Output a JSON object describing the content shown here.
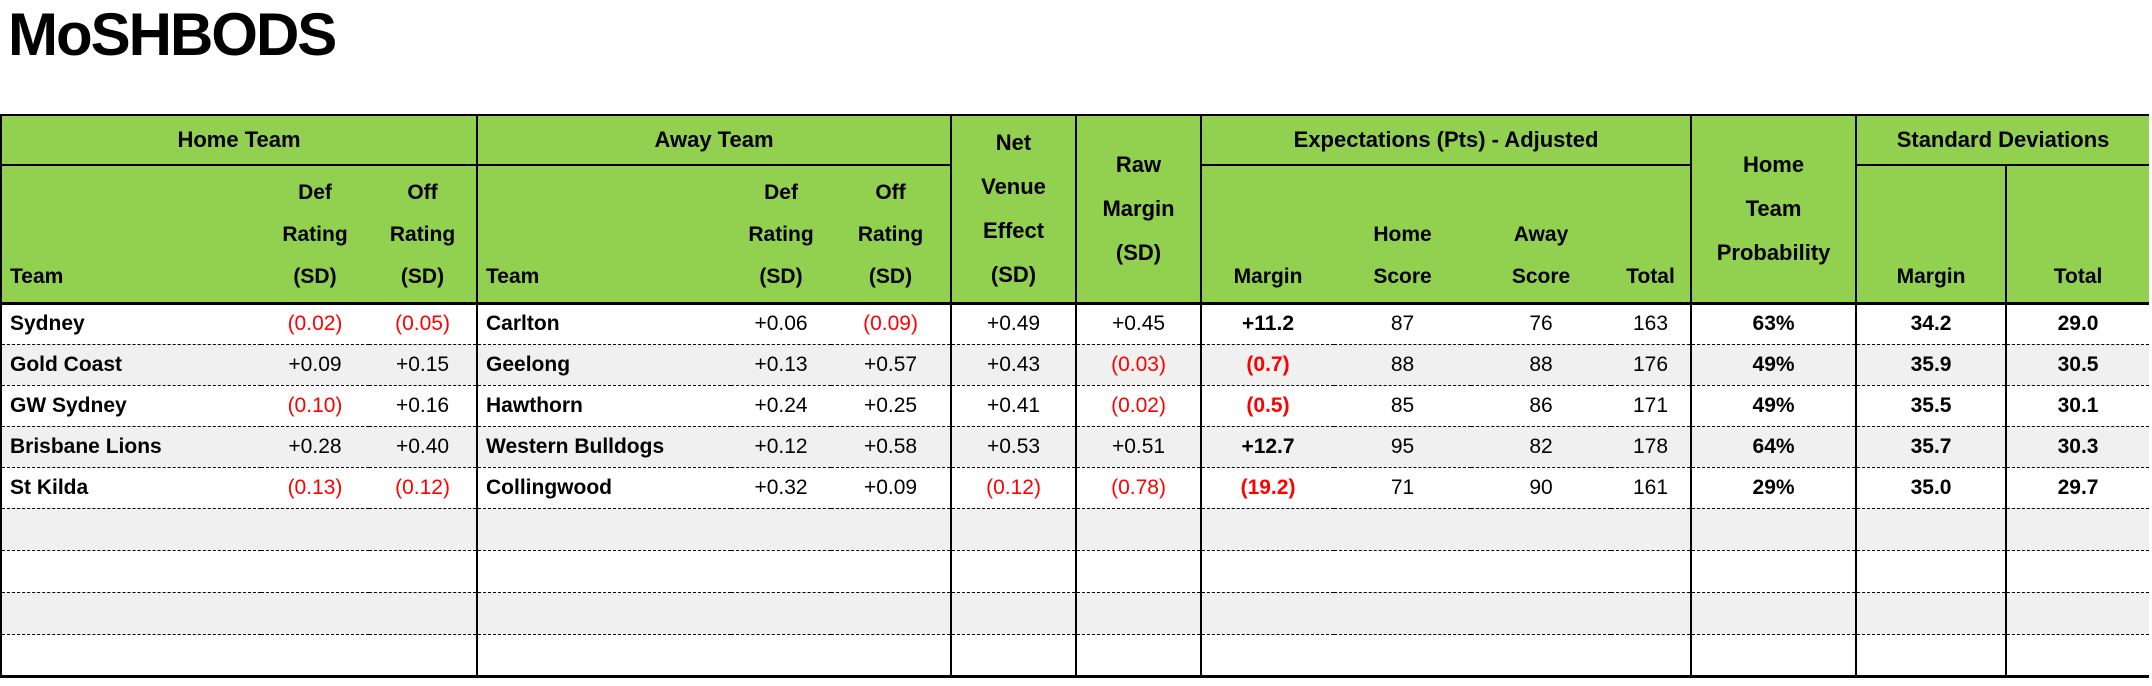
{
  "title": "MoSHBODS",
  "colors": {
    "header_green": "#92d050",
    "negative_red": "#ff0000",
    "row_alt_gray": "#f0f0f0",
    "border_black": "#000000"
  },
  "header": {
    "groups": {
      "home": "Home Team",
      "away": "Away Team",
      "net_venue": "Net\nVenue\nEffect\n(SD)",
      "raw_margin": "Raw\nMargin\n(SD)",
      "expectations": "Expectations (Pts) - Adjusted",
      "probability": "Home\nTeam\nProbability",
      "std_dev": "Standard Deviations"
    },
    "columns": {
      "team": "Team",
      "def_rating": "Def\nRating\n(SD)",
      "off_rating": "Off\nRating\n(SD)",
      "margin": "Margin",
      "home_score": "Home\nScore",
      "away_score": "Away\nScore",
      "total": "Total",
      "sd_margin": "Margin",
      "sd_total": "Total"
    }
  },
  "rows": [
    {
      "home_team": "Sydney",
      "home_def": "(0.02)",
      "home_off": "(0.05)",
      "away_team": "Carlton",
      "away_def": "+0.06",
      "away_off": "(0.09)",
      "net_venue": "+0.49",
      "raw_margin": "+0.45",
      "margin": "+11.2",
      "home_score": "87",
      "away_score": "76",
      "total": "163",
      "probability": "63%",
      "sd_margin": "34.2",
      "sd_total": "29.0"
    },
    {
      "home_team": "Gold Coast",
      "home_def": "+0.09",
      "home_off": "+0.15",
      "away_team": "Geelong",
      "away_def": "+0.13",
      "away_off": "+0.57",
      "net_venue": "+0.43",
      "raw_margin": "(0.03)",
      "margin": "(0.7)",
      "home_score": "88",
      "away_score": "88",
      "total": "176",
      "probability": "49%",
      "sd_margin": "35.9",
      "sd_total": "30.5"
    },
    {
      "home_team": "GW Sydney",
      "home_def": "(0.10)",
      "home_off": "+0.16",
      "away_team": "Hawthorn",
      "away_def": "+0.24",
      "away_off": "+0.25",
      "net_venue": "+0.41",
      "raw_margin": "(0.02)",
      "margin": "(0.5)",
      "home_score": "85",
      "away_score": "86",
      "total": "171",
      "probability": "49%",
      "sd_margin": "35.5",
      "sd_total": "30.1"
    },
    {
      "home_team": "Brisbane Lions",
      "home_def": "+0.28",
      "home_off": "+0.40",
      "away_team": "Western Bulldogs",
      "away_def": "+0.12",
      "away_off": "+0.58",
      "net_venue": "+0.53",
      "raw_margin": "+0.51",
      "margin": "+12.7",
      "home_score": "95",
      "away_score": "82",
      "total": "178",
      "probability": "64%",
      "sd_margin": "35.7",
      "sd_total": "30.3"
    },
    {
      "home_team": "St Kilda",
      "home_def": "(0.13)",
      "home_off": "(0.12)",
      "away_team": "Collingwood",
      "away_def": "+0.32",
      "away_off": "+0.09",
      "net_venue": "(0.12)",
      "raw_margin": "(0.78)",
      "margin": "(19.2)",
      "home_score": "71",
      "away_score": "90",
      "total": "161",
      "probability": "29%",
      "sd_margin": "35.0",
      "sd_total": "29.7"
    }
  ],
  "empty_row_count": 4
}
